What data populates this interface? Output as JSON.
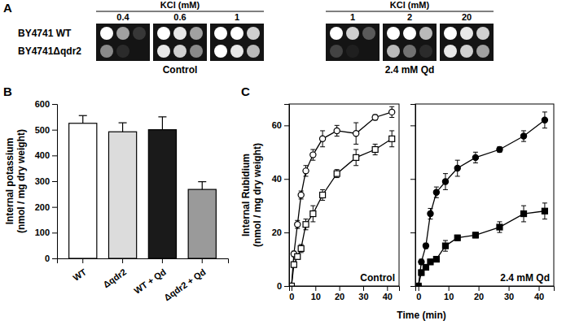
{
  "panel_a": {
    "letter": "A",
    "rows": [
      "BY4741 WT",
      "BY4741Δqdr2"
    ],
    "groups": [
      {
        "header": "KCl (mM)",
        "label": "Control",
        "columns": [
          {
            "kcl": 0.4,
            "spots": [
              [
                1,
                0.6,
                0.15
              ],
              [
                0.5,
                0.1,
                0
              ]
            ]
          },
          {
            "kcl": 0.6,
            "spots": [
              [
                1,
                0.9,
                0.6
              ],
              [
                0.9,
                0.8,
                0.5
              ]
            ]
          },
          {
            "kcl": 1,
            "spots": [
              [
                1,
                1,
                0.8
              ],
              [
                1,
                0.9,
                0.7
              ]
            ]
          }
        ]
      },
      {
        "header": "KCl (mM)",
        "label": "2.4 mM Qd",
        "columns": [
          {
            "kcl": 1,
            "spots": [
              [
                1,
                0.8,
                0.3
              ],
              [
                0.2,
                0.05,
                0
              ]
            ]
          },
          {
            "kcl": 2,
            "spots": [
              [
                1,
                1,
                0.7
              ],
              [
                0.7,
                0.4,
                0.1
              ]
            ]
          },
          {
            "kcl": 20,
            "spots": [
              [
                1,
                0.9,
                0.8
              ],
              [
                0.9,
                0.8,
                0.6
              ]
            ]
          }
        ]
      }
    ]
  },
  "chart_data": [
    {
      "type": "bar",
      "panel_label": "B",
      "categories": [
        "WT",
        "Δqdr2",
        "WT + Qd",
        "Δqdr2 + Qd"
      ],
      "values": [
        525,
        492,
        500,
        268
      ],
      "error": [
        30,
        35,
        50,
        30
      ],
      "colors": [
        "#ffffff",
        "#dcdcdc",
        "#1a1a1a",
        "#9a9a9a"
      ],
      "ylabel": [
        "Internal potassium",
        "(nmol / mg dry weight)"
      ],
      "ylim": [
        0,
        600
      ],
      "yticks": [
        0,
        100,
        200,
        300,
        400,
        500,
        600
      ]
    },
    {
      "type": "line",
      "panel_label": "C",
      "title": "Control",
      "xlabel": "Time (min)",
      "ylabel": [
        "Internal Rubidium",
        "(nmol / mg dry weight)"
      ],
      "x": [
        0,
        1,
        2.5,
        4,
        6,
        9,
        13,
        19,
        27,
        35,
        42
      ],
      "xlim": [
        -1,
        45
      ],
      "xticks": [
        0,
        10,
        20,
        30,
        40
      ],
      "ylim": [
        0,
        68
      ],
      "yticks": [
        0,
        20,
        40,
        60
      ],
      "series": [
        {
          "color": "#000000",
          "marker": "circle-open",
          "values": [
            0,
            12,
            23,
            34,
            43,
            49,
            55,
            58,
            57,
            63,
            65
          ],
          "error": [
            0,
            1,
            1.5,
            1.5,
            2,
            2,
            3,
            2,
            4,
            1,
            2
          ]
        },
        {
          "color": "#000000",
          "marker": "square-open",
          "values": [
            0,
            8,
            11,
            14,
            23,
            27,
            34,
            42,
            48,
            51,
            55
          ],
          "error": [
            0,
            1,
            1,
            1.5,
            2,
            3,
            2,
            1.5,
            3,
            2,
            3
          ]
        }
      ]
    },
    {
      "type": "line",
      "title": "2.4 mM Qd",
      "tick_labels": "x",
      "x": [
        0,
        1,
        2.5,
        4,
        6,
        9,
        13,
        19,
        27,
        35,
        42
      ],
      "xlim": [
        -1,
        45
      ],
      "xticks": [
        0,
        10,
        20,
        30,
        40
      ],
      "ylim": [
        0,
        68
      ],
      "yticks": [
        0,
        20,
        40,
        60
      ],
      "series": [
        {
          "color": "#000000",
          "marker": "circle",
          "values": [
            0,
            9,
            15,
            27,
            35,
            39,
            44,
            48,
            51,
            56,
            62
          ],
          "error": [
            0,
            1,
            1,
            2,
            2,
            3,
            3,
            2,
            1,
            2,
            3
          ]
        },
        {
          "color": "#000000",
          "marker": "square",
          "values": [
            0,
            5,
            7,
            9,
            10,
            15,
            18,
            19,
            22,
            27,
            28
          ],
          "error": [
            0,
            1,
            1,
            1,
            1,
            2,
            1,
            1,
            2,
            3,
            3
          ]
        }
      ]
    }
  ]
}
